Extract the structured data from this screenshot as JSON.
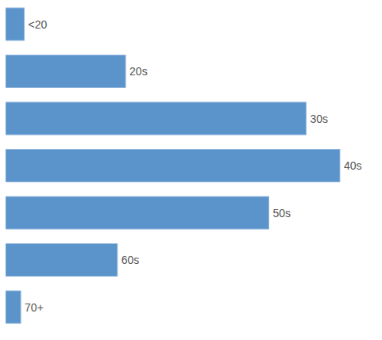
{
  "chart_data": {
    "type": "bar",
    "orientation": "horizontal",
    "categories": [
      "<20",
      "20s",
      "30s",
      "40s",
      "50s",
      "60s",
      "70+"
    ],
    "values": [
      1.6,
      10.3,
      25.8,
      28.7,
      22.6,
      9.6,
      1.3
    ],
    "color": "#5b93cb",
    "xlim": [
      0,
      30
    ],
    "tick_labels": false,
    "grid": false
  }
}
